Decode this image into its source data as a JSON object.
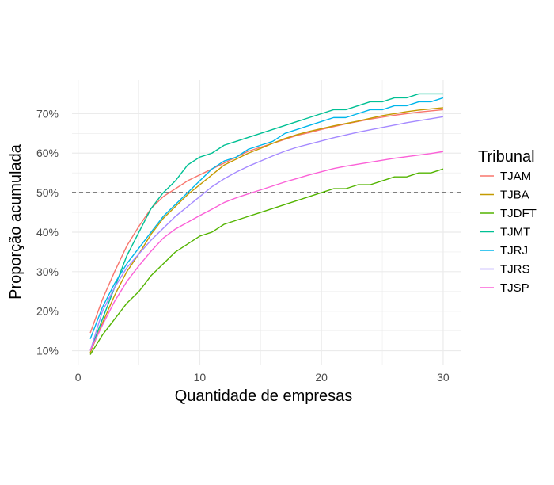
{
  "chart_data": {
    "type": "line",
    "xlabel": "Quantidade de empresas",
    "ylabel": "Proporção acumulada",
    "xlim": [
      -0.5,
      31.5
    ],
    "ylim": [
      0.065,
      0.785
    ],
    "x_ticks": [
      0,
      10,
      20,
      30
    ],
    "x_tick_labels": [
      "0",
      "10",
      "20",
      "30"
    ],
    "y_ticks": [
      0.1,
      0.2,
      0.3,
      0.4,
      0.5,
      0.6,
      0.7
    ],
    "y_tick_labels": [
      "10%",
      "20%",
      "30%",
      "40%",
      "50%",
      "60%",
      "70%"
    ],
    "grid": true,
    "reference_line": {
      "y": 0.5,
      "style": "dashed",
      "color": "#000000"
    },
    "legend": {
      "title": "Tribunal",
      "position": "right"
    },
    "x": [
      1,
      2,
      3,
      4,
      5,
      6,
      7,
      8,
      9,
      10,
      11,
      12,
      13,
      14,
      15,
      16,
      17,
      18,
      19,
      20,
      21,
      22,
      23,
      24,
      25,
      26,
      27,
      28,
      29,
      30
    ],
    "series": [
      {
        "name": "TJAM",
        "color": "#F8766D",
        "values": [
          0.145,
          0.23,
          0.3,
          0.365,
          0.415,
          0.46,
          0.49,
          0.51,
          0.53,
          0.545,
          0.56,
          0.575,
          0.59,
          0.605,
          0.615,
          0.625,
          0.635,
          0.645,
          0.652,
          0.66,
          0.667,
          0.674,
          0.68,
          0.686,
          0.691,
          0.696,
          0.7,
          0.704,
          0.707,
          0.71
        ]
      },
      {
        "name": "TJBA",
        "color": "#C49A00",
        "values": [
          0.095,
          0.17,
          0.24,
          0.3,
          0.345,
          0.395,
          0.435,
          0.465,
          0.495,
          0.52,
          0.545,
          0.57,
          0.585,
          0.6,
          0.612,
          0.625,
          0.637,
          0.647,
          0.655,
          0.662,
          0.669,
          0.675,
          0.681,
          0.688,
          0.695,
          0.7,
          0.705,
          0.709,
          0.712,
          0.715
        ]
      },
      {
        "name": "TJDFT",
        "color": "#53B400",
        "values": [
          0.09,
          0.14,
          0.18,
          0.22,
          0.25,
          0.29,
          0.32,
          0.35,
          0.37,
          0.39,
          0.4,
          0.42,
          0.43,
          0.44,
          0.45,
          0.46,
          0.47,
          0.48,
          0.49,
          0.5,
          0.51,
          0.51,
          0.52,
          0.52,
          0.53,
          0.54,
          0.54,
          0.55,
          0.55,
          0.56
        ]
      },
      {
        "name": "TJMT",
        "color": "#00C094",
        "values": [
          0.1,
          0.18,
          0.26,
          0.34,
          0.4,
          0.46,
          0.5,
          0.53,
          0.57,
          0.59,
          0.6,
          0.62,
          0.63,
          0.64,
          0.65,
          0.66,
          0.67,
          0.68,
          0.69,
          0.7,
          0.71,
          0.71,
          0.72,
          0.73,
          0.73,
          0.74,
          0.74,
          0.75,
          0.75,
          0.75
        ]
      },
      {
        "name": "TJRJ",
        "color": "#00B6EB",
        "values": [
          0.13,
          0.21,
          0.27,
          0.32,
          0.36,
          0.4,
          0.44,
          0.47,
          0.5,
          0.53,
          0.56,
          0.58,
          0.59,
          0.61,
          0.62,
          0.63,
          0.65,
          0.66,
          0.67,
          0.68,
          0.69,
          0.69,
          0.7,
          0.71,
          0.71,
          0.72,
          0.72,
          0.73,
          0.73,
          0.74
        ]
      },
      {
        "name": "TJRS",
        "color": "#A58AFF",
        "values": [
          0.1,
          0.2,
          0.26,
          0.31,
          0.345,
          0.38,
          0.41,
          0.44,
          0.465,
          0.49,
          0.515,
          0.535,
          0.552,
          0.567,
          0.58,
          0.593,
          0.605,
          0.615,
          0.623,
          0.631,
          0.639,
          0.646,
          0.653,
          0.659,
          0.665,
          0.671,
          0.677,
          0.682,
          0.687,
          0.692
        ]
      },
      {
        "name": "TJSP",
        "color": "#FB61D7",
        "values": [
          0.1,
          0.165,
          0.225,
          0.275,
          0.315,
          0.352,
          0.385,
          0.408,
          0.425,
          0.442,
          0.458,
          0.475,
          0.487,
          0.497,
          0.507,
          0.517,
          0.527,
          0.536,
          0.545,
          0.553,
          0.561,
          0.567,
          0.572,
          0.577,
          0.582,
          0.587,
          0.591,
          0.595,
          0.599,
          0.604
        ]
      }
    ]
  }
}
